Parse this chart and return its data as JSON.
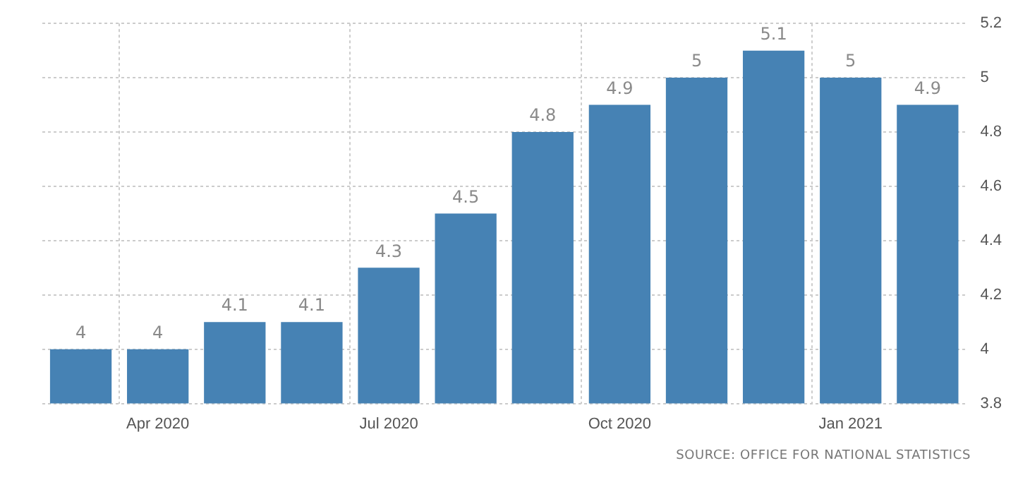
{
  "chart_data": {
    "type": "bar",
    "categories": [
      null,
      "Apr 2020",
      null,
      null,
      "Jul 2020",
      null,
      null,
      "Oct 2020",
      null,
      null,
      "Jan 2021",
      null
    ],
    "values": [
      4,
      4,
      4.1,
      4.1,
      4.3,
      4.5,
      4.8,
      4.9,
      5,
      5.1,
      5,
      4.9
    ],
    "color": "#4682b4",
    "ylim": [
      3.8,
      5.2
    ],
    "yticks": [
      3.8,
      4,
      4.2,
      4.4,
      4.6,
      4.8,
      5,
      5.2
    ],
    "grid": true,
    "data_labels": true,
    "annotations": [
      "SOURCE: OFFICE FOR NATIONAL STATISTICS"
    ]
  }
}
